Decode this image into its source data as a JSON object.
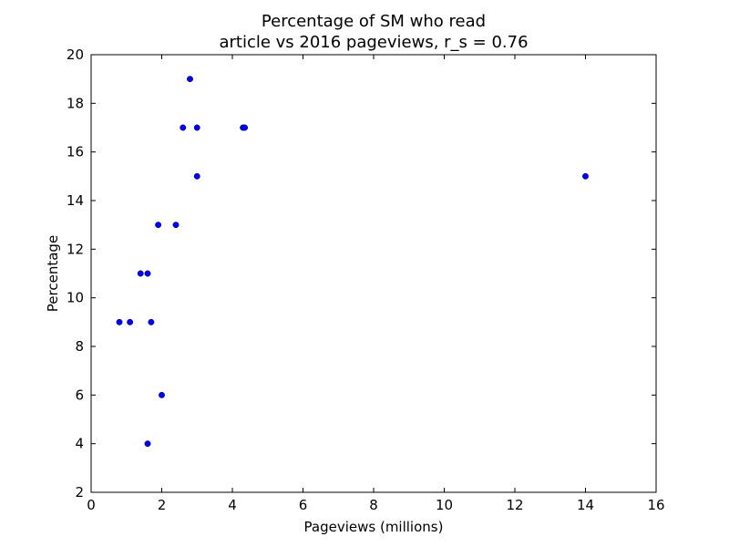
{
  "chart_data": {
    "type": "scatter",
    "title": [
      "Percentage of SM who read",
      "article vs 2016 pageviews, r_s = 0.76"
    ],
    "xlabel": "Pageviews (millions)",
    "ylabel": "Percentage",
    "xlim": [
      0,
      16
    ],
    "ylim": [
      2,
      20
    ],
    "xticks": [
      0,
      2,
      4,
      6,
      8,
      10,
      12,
      14,
      16
    ],
    "yticks": [
      2,
      4,
      6,
      8,
      10,
      12,
      14,
      16,
      18,
      20
    ],
    "grid": false,
    "marker_color": "#0000ff",
    "points": [
      {
        "x": 0.8,
        "y": 9
      },
      {
        "x": 1.1,
        "y": 9
      },
      {
        "x": 1.7,
        "y": 9
      },
      {
        "x": 1.4,
        "y": 11
      },
      {
        "x": 1.6,
        "y": 11
      },
      {
        "x": 1.9,
        "y": 13
      },
      {
        "x": 2.4,
        "y": 13
      },
      {
        "x": 1.6,
        "y": 4
      },
      {
        "x": 2.0,
        "y": 6
      },
      {
        "x": 2.6,
        "y": 17
      },
      {
        "x": 3.0,
        "y": 17
      },
      {
        "x": 4.3,
        "y": 17
      },
      {
        "x": 4.35,
        "y": 17
      },
      {
        "x": 2.8,
        "y": 19
      },
      {
        "x": 3.0,
        "y": 15
      },
      {
        "x": 14.0,
        "y": 15
      }
    ]
  }
}
